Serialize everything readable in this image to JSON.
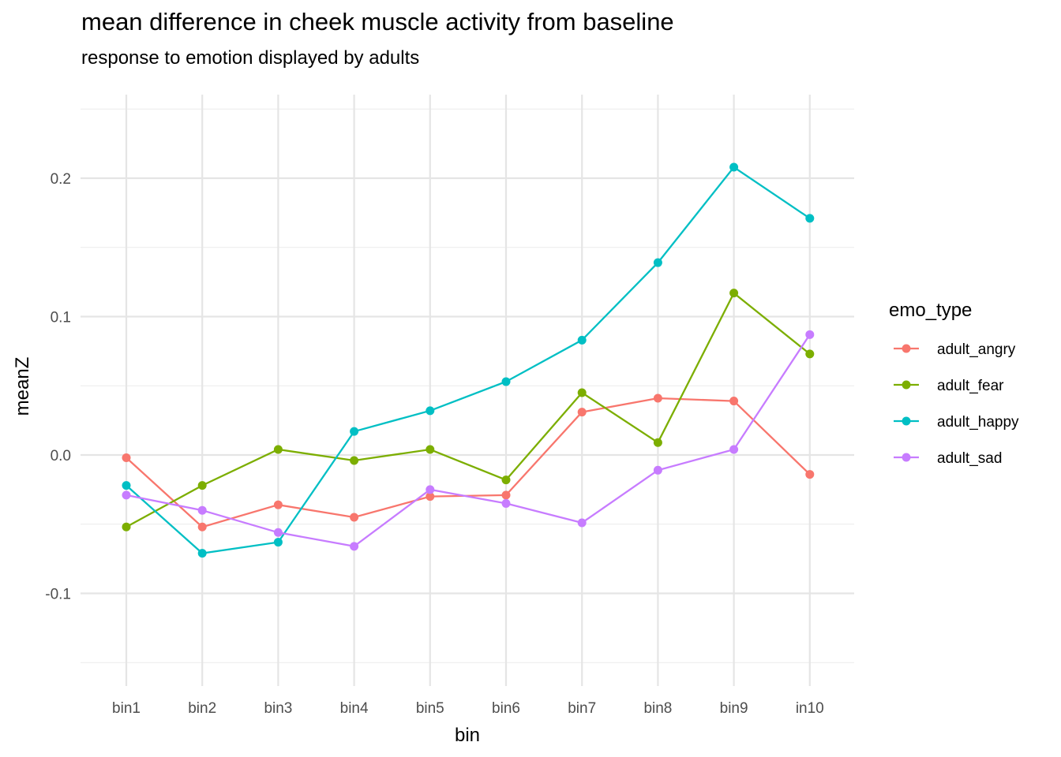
{
  "chart_data": {
    "type": "line",
    "title": "mean difference in cheek muscle activity from baseline",
    "subtitle": "response to emotion displayed by adults",
    "xlabel": "bin",
    "ylabel": "meanZ",
    "categories": [
      "bin1",
      "bin2",
      "bin3",
      "bin4",
      "bin5",
      "bin6",
      "bin7",
      "bin8",
      "bin9",
      "in10"
    ],
    "ylim": [
      -0.15,
      0.25
    ],
    "yticks": [
      -0.1,
      0.0,
      0.1,
      0.2
    ],
    "ytick_labels": [
      "-0.1",
      "0.0",
      "0.1",
      "0.2"
    ],
    "grid": true,
    "legend": {
      "title": "emo_type",
      "position": "right"
    },
    "series": [
      {
        "name": "adult_angry",
        "color": "#F8766D",
        "values": [
          -0.002,
          -0.052,
          -0.036,
          -0.045,
          -0.03,
          -0.029,
          0.031,
          0.041,
          0.039,
          -0.014
        ]
      },
      {
        "name": "adult_fear",
        "color": "#7CAE00",
        "values": [
          -0.052,
          -0.022,
          0.004,
          -0.004,
          0.004,
          -0.018,
          0.045,
          0.009,
          0.117,
          0.073
        ]
      },
      {
        "name": "adult_happy",
        "color": "#00BFC4",
        "values": [
          -0.022,
          -0.071,
          -0.063,
          0.017,
          0.032,
          0.053,
          0.083,
          0.139,
          0.208,
          0.171
        ]
      },
      {
        "name": "adult_sad",
        "color": "#C77CFF",
        "values": [
          -0.029,
          -0.04,
          -0.056,
          -0.066,
          -0.025,
          -0.035,
          -0.049,
          -0.011,
          0.004,
          0.087
        ]
      }
    ]
  }
}
